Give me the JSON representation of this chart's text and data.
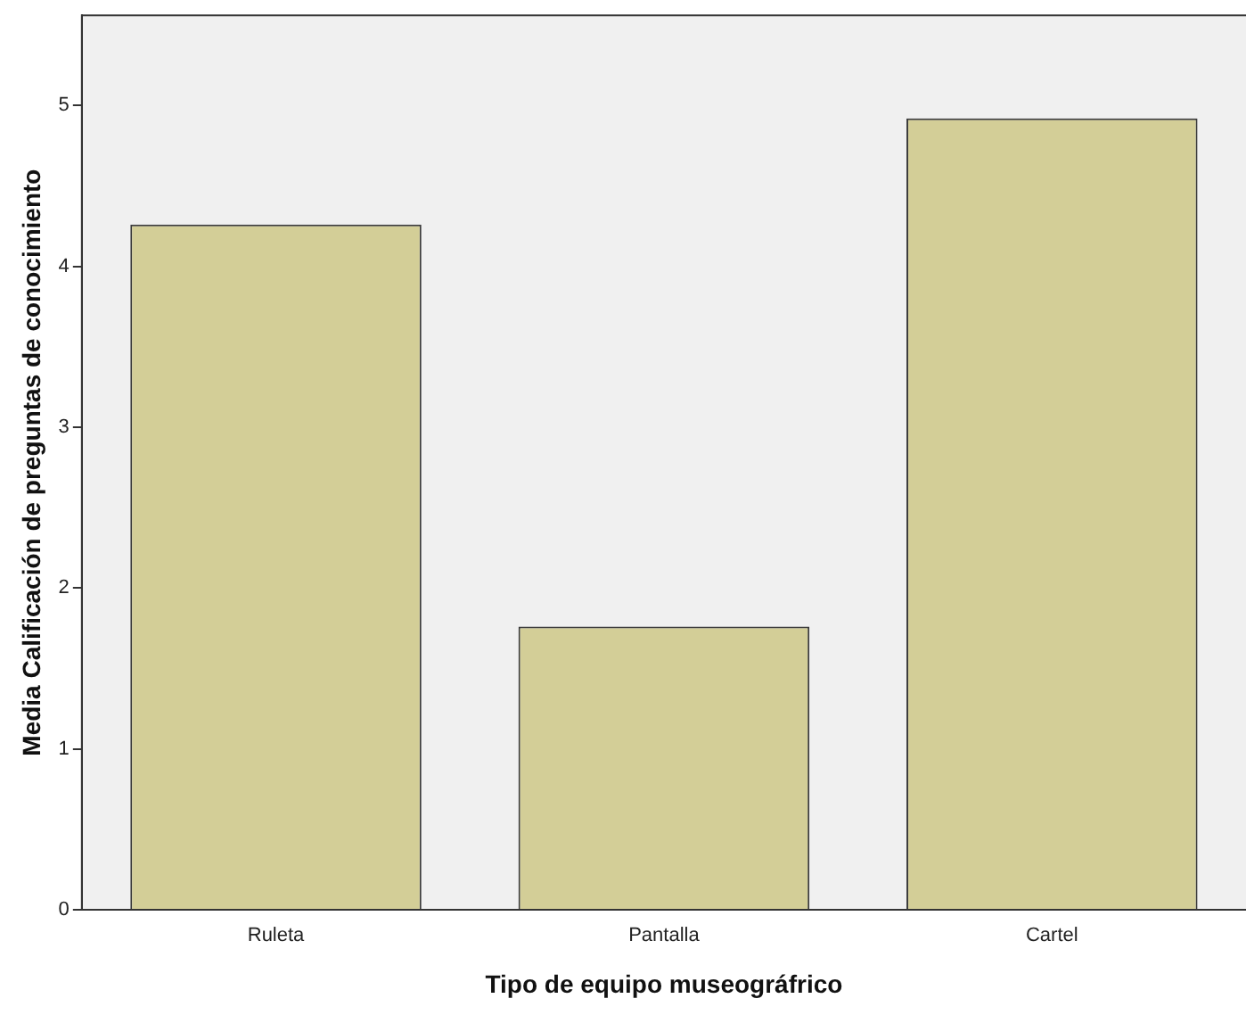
{
  "chart_data": {
    "type": "bar",
    "xlabel": "Tipo de equipo museográfrico",
    "ylabel": "Media Calificación de preguntas de conocimiento",
    "categories": [
      "Ruleta",
      "Pantalla",
      "Cartel"
    ],
    "values": [
      4.26,
      1.76,
      4.92
    ],
    "color": "#d3ce97",
    "ylim": [
      0,
      5.56
    ],
    "yticks": [
      0,
      1,
      2,
      3,
      4,
      5
    ],
    "grid": false,
    "legend": false
  }
}
